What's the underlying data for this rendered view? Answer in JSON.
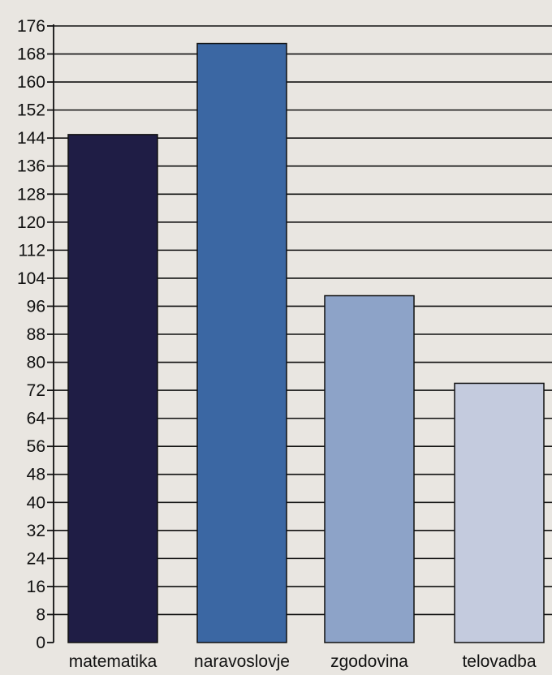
{
  "chart_data": {
    "type": "bar",
    "categories": [
      "matematika",
      "naravoslovje",
      "zgodovina",
      "telovadba"
    ],
    "values": [
      145,
      171,
      99,
      74
    ],
    "ylim": [
      0,
      176
    ],
    "yticks": [
      0,
      8,
      16,
      24,
      32,
      40,
      48,
      56,
      64,
      72,
      80,
      88,
      96,
      104,
      112,
      120,
      128,
      136,
      144,
      152,
      160,
      168,
      176
    ],
    "grid": true,
    "colors": [
      "#1f1d45",
      "#3b67a3",
      "#8da3c8",
      "#c4cbde"
    ],
    "background": "#e9e6e1",
    "gridline_color": "#111111"
  }
}
